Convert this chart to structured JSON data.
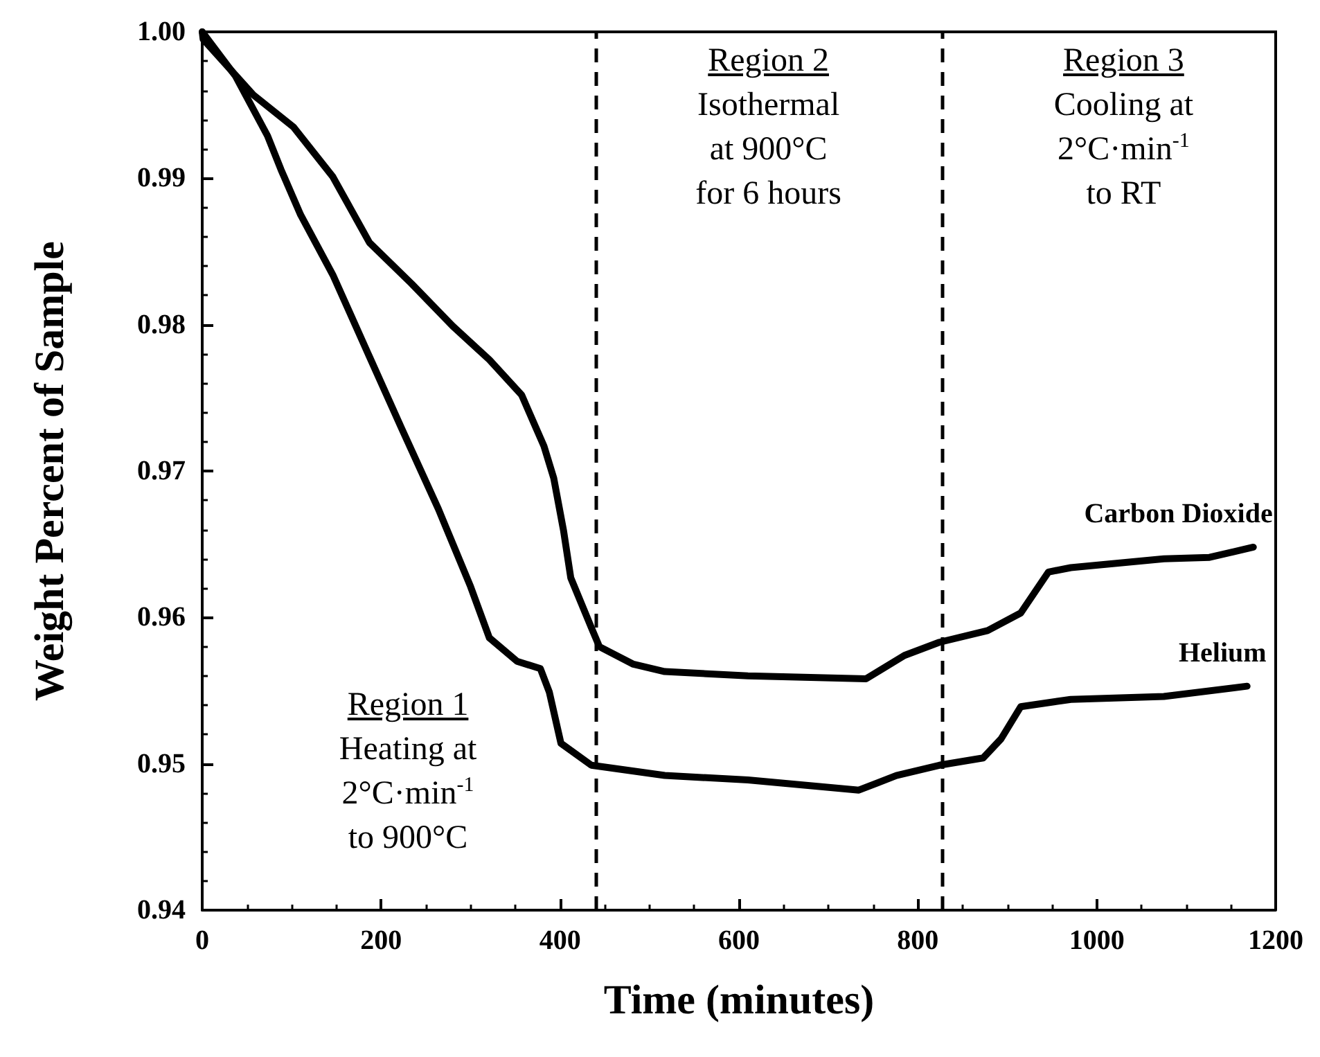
{
  "chart_data": {
    "type": "line",
    "xlabel": "Time (minutes)",
    "ylabel": "Weight Percent of Sample",
    "xlim": [
      0,
      1200
    ],
    "xticks": [
      0,
      200,
      400,
      600,
      800,
      1000,
      1200
    ],
    "ylim": [
      0.94,
      1.0
    ],
    "yticks": [
      {
        "value": 0.94,
        "label": "0.94"
      },
      {
        "value": 0.95,
        "label": "0.95"
      },
      {
        "value": 0.96,
        "label": "0.96"
      },
      {
        "value": 0.97,
        "label": "0.97"
      },
      {
        "value": 0.98,
        "label": "0.98"
      },
      {
        "value": 0.99,
        "label": "0.99"
      },
      {
        "value": 1.0,
        "label": "1.00"
      }
    ],
    "grid": false,
    "legend": false,
    "marker": "none",
    "line_style": "solid",
    "series": [
      {
        "name": "Carbon Dioxide",
        "color": "#000000",
        "x": [
          0,
          1,
          57,
          102,
          146,
          187,
          234,
          280,
          321,
          357,
          382,
          393,
          404,
          412,
          435,
          444,
          482,
          517,
          610,
          742,
          785,
          824,
          878,
          915,
          946,
          971,
          1075,
          1126,
          1175
        ],
        "values": [
          1.0,
          0.9995,
          0.9957,
          0.9935,
          0.9901,
          0.9856,
          0.9828,
          0.9799,
          0.9776,
          0.9752,
          0.9717,
          0.9695,
          0.9659,
          0.9627,
          0.9593,
          0.958,
          0.9568,
          0.9563,
          0.956,
          0.9558,
          0.9574,
          0.9583,
          0.9591,
          0.9603,
          0.9631,
          0.9634,
          0.964,
          0.9641,
          0.9648
        ]
      },
      {
        "name": "Helium",
        "color": "#000000",
        "x": [
          0,
          37,
          73,
          88,
          110,
          146,
          187,
          223,
          264,
          300,
          321,
          352,
          378,
          388,
          401,
          435,
          517,
          610,
          734,
          776,
          824,
          873,
          893,
          915,
          971,
          1075,
          1168
        ],
        "values": [
          1.0,
          0.997,
          0.9929,
          0.9906,
          0.9875,
          0.9834,
          0.9778,
          0.9729,
          0.9674,
          0.9621,
          0.9586,
          0.957,
          0.9565,
          0.9549,
          0.9514,
          0.9499,
          0.9492,
          0.9489,
          0.9482,
          0.9492,
          0.9499,
          0.9504,
          0.9517,
          0.9539,
          0.9544,
          0.9546,
          0.9553
        ]
      }
    ],
    "ref_lines": [
      {
        "axis": "x",
        "value": 440,
        "line_style": "dashed",
        "color": "#000000"
      },
      {
        "axis": "x",
        "value": 827,
        "line_style": "dashed",
        "color": "#000000"
      }
    ],
    "annotations": [
      "Region 1\nHeating at\n2°C·min$^{-1}$\nto 900°C",
      "Region 2\nIsothermal\nat 900°C\nfor 6 hours",
      "Region 3\nCooling at\n2°C·min$^{-1}$\nto RT"
    ]
  }
}
